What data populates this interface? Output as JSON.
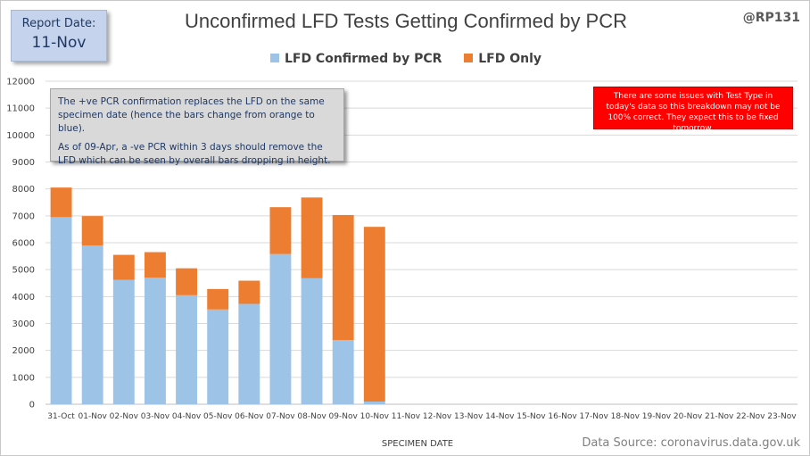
{
  "report": {
    "label": "Report Date:",
    "date": "11-Nov"
  },
  "handle": "@RP131",
  "colors": {
    "confirmed": "#9dc3e6",
    "lfd_only": "#ed7d31",
    "gridline": "#d9d9d9",
    "warn_bg": "#ff0000"
  },
  "note": {
    "line1": "The +ve PCR confirmation replaces the LFD on the same specimen date (hence the bars change from orange to blue).",
    "line2": "As of 09-Apr, a -ve PCR within 3 days should remove the LFD which can be seen by overall bars dropping  in height."
  },
  "warning": "There are some issues with Test Type in today's data so this breakdown may not be 100% correct. They expect this to be fixed tomorrow.",
  "source": "Data Source: coronavirus.data.gov.uk",
  "chart_data": {
    "type": "bar",
    "stacked": true,
    "title": "Unconfirmed LFD Tests Getting Confirmed by PCR",
    "xlabel": "SPECIMEN DATE",
    "ylabel": "",
    "ylim": [
      0,
      12000
    ],
    "yticks": [
      0,
      1000,
      2000,
      3000,
      4000,
      5000,
      6000,
      7000,
      8000,
      9000,
      10000,
      11000,
      12000
    ],
    "grid": true,
    "legend_position": "top",
    "categories": [
      "31-Oct",
      "01-Nov",
      "02-Nov",
      "03-Nov",
      "04-Nov",
      "05-Nov",
      "06-Nov",
      "07-Nov",
      "08-Nov",
      "09-Nov",
      "10-Nov",
      "11-Nov",
      "12-Nov",
      "13-Nov",
      "14-Nov",
      "15-Nov",
      "16-Nov",
      "17-Nov",
      "18-Nov",
      "19-Nov",
      "20-Nov",
      "21-Nov",
      "22-Nov",
      "23-Nov"
    ],
    "series": [
      {
        "name": "LFD Confirmed by PCR",
        "values": [
          6950,
          5900,
          4620,
          4700,
          4050,
          3520,
          3730,
          5580,
          4680,
          2380,
          100,
          0,
          0,
          0,
          0,
          0,
          0,
          0,
          0,
          0,
          0,
          0,
          0,
          0
        ]
      },
      {
        "name": "LFD Only",
        "values": [
          1100,
          1090,
          930,
          950,
          1000,
          760,
          860,
          1740,
          3000,
          4650,
          6490,
          0,
          0,
          0,
          0,
          0,
          0,
          0,
          0,
          0,
          0,
          0,
          0,
          0
        ]
      }
    ]
  }
}
